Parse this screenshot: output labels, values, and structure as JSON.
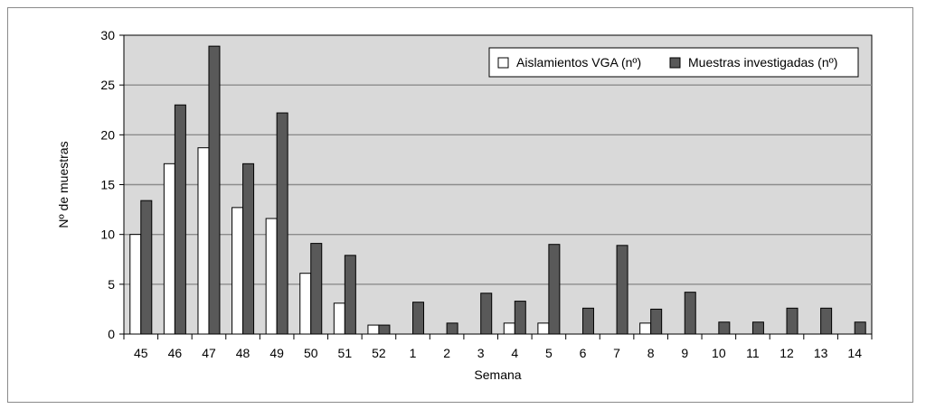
{
  "chart_data": {
    "type": "bar",
    "xlabel": "Semana",
    "ylabel": "Nº de muestras",
    "ylim": [
      0,
      30
    ],
    "yticks": [
      0,
      5,
      10,
      15,
      20,
      25,
      30
    ],
    "grid": true,
    "legend_position": "top-right",
    "plot_background": "#d9d9d9",
    "categories": [
      "45",
      "46",
      "47",
      "48",
      "49",
      "50",
      "51",
      "52",
      "1",
      "2",
      "3",
      "4",
      "5",
      "6",
      "7",
      "8",
      "9",
      "10",
      "11",
      "12",
      "13",
      "14"
    ],
    "series": [
      {
        "name": "Aislamientos VGA (nº)",
        "color": "#ffffff",
        "values": [
          10,
          17.1,
          18.7,
          12.7,
          11.6,
          6.1,
          3.1,
          0.9,
          0,
          0,
          0,
          1.1,
          1.1,
          0,
          0,
          1.1,
          0,
          0,
          0,
          0,
          0,
          0
        ]
      },
      {
        "name": "Muestras investigadas (nº)",
        "color": "#595959",
        "values": [
          13.4,
          23,
          28.9,
          17.1,
          22.2,
          9.1,
          7.9,
          0.9,
          3.2,
          1.1,
          4.1,
          3.3,
          9,
          2.6,
          8.9,
          2.5,
          4.2,
          1.2,
          1.2,
          2.6,
          2.6,
          1.2
        ]
      }
    ]
  }
}
